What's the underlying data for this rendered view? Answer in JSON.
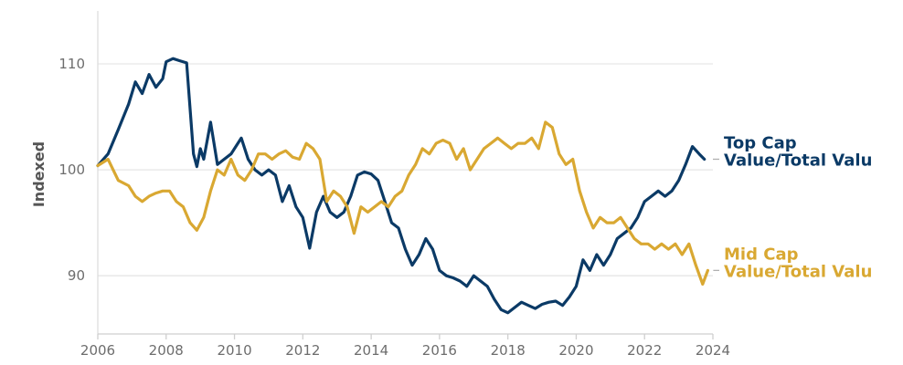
{
  "chart_data": {
    "type": "line",
    "title": "",
    "xlabel": "",
    "ylabel": "Indexed",
    "xlim": [
      2006,
      2024
    ],
    "ylim": [
      84.5,
      115
    ],
    "x_ticks": [
      "2006",
      "2008",
      "2010",
      "2012",
      "2014",
      "2016",
      "2018",
      "2020",
      "2022",
      "2024"
    ],
    "y_ticks": [
      "90",
      "100",
      "110"
    ],
    "grid": true,
    "series": [
      {
        "name": "Top Cap Value/Total Value",
        "label_lines": [
          "Top Cap",
          "Value/Total Valu"
        ],
        "color": "#0b3a66",
        "x": [
          2006.0,
          2006.3,
          2006.6,
          2006.9,
          2007.1,
          2007.3,
          2007.5,
          2007.7,
          2007.9,
          2008.0,
          2008.2,
          2008.4,
          2008.6,
          2008.8,
          2008.9,
          2009.0,
          2009.1,
          2009.3,
          2009.5,
          2009.7,
          2009.9,
          2010.2,
          2010.4,
          2010.6,
          2010.8,
          2011.0,
          2011.2,
          2011.4,
          2011.6,
          2011.8,
          2012.0,
          2012.2,
          2012.4,
          2012.6,
          2012.8,
          2013.0,
          2013.2,
          2013.4,
          2013.6,
          2013.8,
          2014.0,
          2014.2,
          2014.4,
          2014.6,
          2014.8,
          2015.0,
          2015.2,
          2015.4,
          2015.6,
          2015.8,
          2016.0,
          2016.2,
          2016.4,
          2016.6,
          2016.8,
          2017.0,
          2017.2,
          2017.4,
          2017.6,
          2017.8,
          2018.0,
          2018.2,
          2018.4,
          2018.6,
          2018.8,
          2019.0,
          2019.2,
          2019.4,
          2019.6,
          2019.8,
          2020.0,
          2020.2,
          2020.4,
          2020.6,
          2020.8,
          2021.0,
          2021.2,
          2021.4,
          2021.6,
          2021.8,
          2022.0,
          2022.2,
          2022.4,
          2022.6,
          2022.8,
          2023.0,
          2023.2,
          2023.4,
          2023.6,
          2023.75
        ],
        "values": [
          100.4,
          101.5,
          103.8,
          106.2,
          108.3,
          107.2,
          109.0,
          107.8,
          108.6,
          110.2,
          110.5,
          110.3,
          110.1,
          101.5,
          100.3,
          102.0,
          101.0,
          104.5,
          100.5,
          101.0,
          101.5,
          103.0,
          101.0,
          100.0,
          99.5,
          100.0,
          99.5,
          97.0,
          98.5,
          96.5,
          95.5,
          92.6,
          96.0,
          97.5,
          96.0,
          95.5,
          96.0,
          97.5,
          99.5,
          99.8,
          99.6,
          99.0,
          97.0,
          95.0,
          94.5,
          92.5,
          91.0,
          92.0,
          93.5,
          92.5,
          90.5,
          90.0,
          89.8,
          89.5,
          89.0,
          90.0,
          89.5,
          89.0,
          87.8,
          86.8,
          86.5,
          87.0,
          87.5,
          87.2,
          86.9,
          87.3,
          87.5,
          87.6,
          87.2,
          88.0,
          89.0,
          91.5,
          90.5,
          92.0,
          91.0,
          92.0,
          93.5,
          94.0,
          94.5,
          95.5,
          97.0,
          97.5,
          98.0,
          97.5,
          98.0,
          99.0,
          100.5,
          102.2,
          101.5,
          101.0
        ]
      },
      {
        "name": "Mid Cap Value/Total Value",
        "label_lines": [
          "Mid Cap",
          "Value/Total Valu"
        ],
        "color": "#d9a832",
        "x": [
          2006.0,
          2006.3,
          2006.6,
          2006.9,
          2007.1,
          2007.3,
          2007.5,
          2007.7,
          2007.9,
          2008.1,
          2008.3,
          2008.5,
          2008.7,
          2008.9,
          2009.1,
          2009.3,
          2009.5,
          2009.7,
          2009.9,
          2010.1,
          2010.3,
          2010.5,
          2010.7,
          2010.9,
          2011.1,
          2011.3,
          2011.5,
          2011.7,
          2011.9,
          2012.1,
          2012.3,
          2012.5,
          2012.7,
          2012.9,
          2013.1,
          2013.3,
          2013.5,
          2013.7,
          2013.9,
          2014.1,
          2014.3,
          2014.5,
          2014.7,
          2014.9,
          2015.1,
          2015.3,
          2015.5,
          2015.7,
          2015.9,
          2016.1,
          2016.3,
          2016.5,
          2016.7,
          2016.9,
          2017.1,
          2017.3,
          2017.5,
          2017.7,
          2017.9,
          2018.1,
          2018.3,
          2018.5,
          2018.7,
          2018.9,
          2019.1,
          2019.3,
          2019.5,
          2019.7,
          2019.9,
          2020.1,
          2020.3,
          2020.5,
          2020.7,
          2020.9,
          2021.1,
          2021.3,
          2021.5,
          2021.7,
          2021.9,
          2022.1,
          2022.3,
          2022.5,
          2022.7,
          2022.9,
          2023.1,
          2023.3,
          2023.5,
          2023.7,
          2023.85
        ],
        "values": [
          100.4,
          101.0,
          99.0,
          98.5,
          97.5,
          97.0,
          97.5,
          97.8,
          98.0,
          98.0,
          97.0,
          96.5,
          95.0,
          94.3,
          95.5,
          98.0,
          100.0,
          99.5,
          101.0,
          99.5,
          99.0,
          100.0,
          101.5,
          101.5,
          101.0,
          101.5,
          101.8,
          101.2,
          101.0,
          102.5,
          102.0,
          101.0,
          97.0,
          98.0,
          97.5,
          96.5,
          94.0,
          96.5,
          96.0,
          96.5,
          97.0,
          96.5,
          97.5,
          98.0,
          99.5,
          100.5,
          102.0,
          101.5,
          102.5,
          102.8,
          102.5,
          101.0,
          102.0,
          100.0,
          101.0,
          102.0,
          102.5,
          103.0,
          102.5,
          102.0,
          102.5,
          102.5,
          103.0,
          102.0,
          104.5,
          104.0,
          101.5,
          100.5,
          101.0,
          98.0,
          96.0,
          94.5,
          95.5,
          95.0,
          95.0,
          95.5,
          94.5,
          93.5,
          93.0,
          93.0,
          92.5,
          93.0,
          92.5,
          93.0,
          92.0,
          93.0,
          91.0,
          89.2,
          90.5
        ]
      }
    ]
  }
}
